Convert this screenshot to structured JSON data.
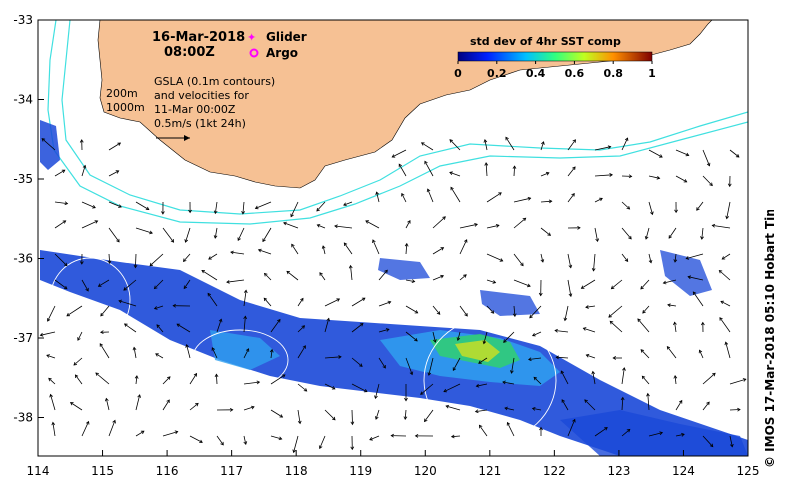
{
  "map": {
    "date": "16-Mar-2018",
    "time": "08:00Z",
    "legend_glider": "Glider",
    "legend_argo": "Argo",
    "depth_200": "200m",
    "depth_1000": "1000m",
    "gsla_lines": [
      "GSLA (0.1m contours)",
      "and velocities for",
      "11-Mar 00:00Z",
      "0.5m/s (1kt 24h)"
    ],
    "colorbar": {
      "title": "std dev of 4hr SST comp",
      "ticks": [
        "0",
        "0.2",
        "0.4",
        "0.6",
        "0.8",
        "1"
      ]
    },
    "lat_ticks": [
      "-33",
      "-34",
      "-35",
      "-36",
      "-37",
      "-38"
    ],
    "lon_ticks": [
      "114",
      "115",
      "116",
      "117",
      "118",
      "119",
      "120",
      "121",
      "122",
      "123",
      "124",
      "125"
    ],
    "credit": "© IMOS 17-Mar-2018 05:10 Hobart Time",
    "colors": {
      "land": "#f6c194",
      "isobath": "#40e0e0",
      "glider_marker": "#ff00ff",
      "argo_marker": "#ff00ff"
    }
  }
}
